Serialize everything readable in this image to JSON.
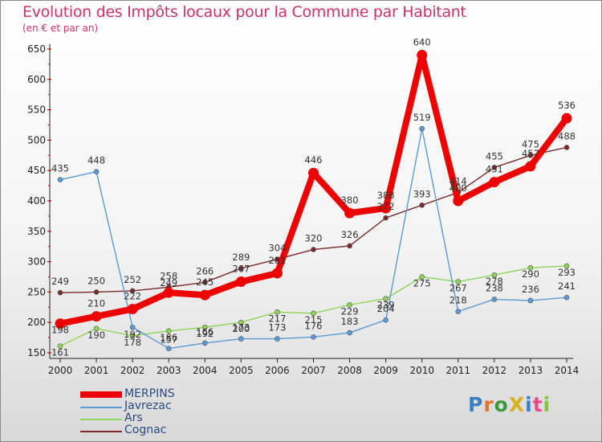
{
  "header": {
    "title": "Evolution des Impôts locaux pour la Commune par Habitant",
    "subtitle": "(en € et par an)"
  },
  "logo_text": "ProXiti",
  "chart_data": {
    "type": "line",
    "title": "Evolution des Impôts locaux pour la Commune par Habitant",
    "subtitle": "(en € et par an)",
    "xlabel": "",
    "ylabel": "",
    "ylim": [
      150,
      650
    ],
    "yticks": [
      150,
      200,
      250,
      300,
      350,
      400,
      450,
      500,
      550,
      600,
      650
    ],
    "x": [
      "2000",
      "2001",
      "2002",
      "2003",
      "2004",
      "2005",
      "2006",
      "2007",
      "2008",
      "2009",
      "2010",
      "2011",
      "2012",
      "2013",
      "2014"
    ],
    "grid": false,
    "legend": "bottom-left",
    "series": [
      {
        "name": "MERPINS",
        "color": "#ee0000",
        "values": [
          198,
          210,
          222,
          249,
          245,
          267,
          281,
          446,
          380,
          388,
          640,
          400,
          431,
          457,
          536
        ]
      },
      {
        "name": "Javrezac",
        "color": "#5b9bd5",
        "values": [
          435,
          448,
          192,
          157,
          166,
          173,
          173,
          176,
          183,
          204,
          519,
          218,
          238,
          236,
          241
        ]
      },
      {
        "name": "Ars",
        "color": "#8fd45a",
        "values": [
          161,
          190,
          178,
          186,
          192,
          200,
          217,
          215,
          229,
          239,
          275,
          267,
          278,
          290,
          293
        ]
      },
      {
        "name": "Cognac",
        "color": "#7a2a2a",
        "values": [
          249,
          250,
          252,
          258,
          266,
          289,
          304,
          320,
          326,
          372,
          393,
          414,
          455,
          475,
          488
        ]
      }
    ]
  }
}
